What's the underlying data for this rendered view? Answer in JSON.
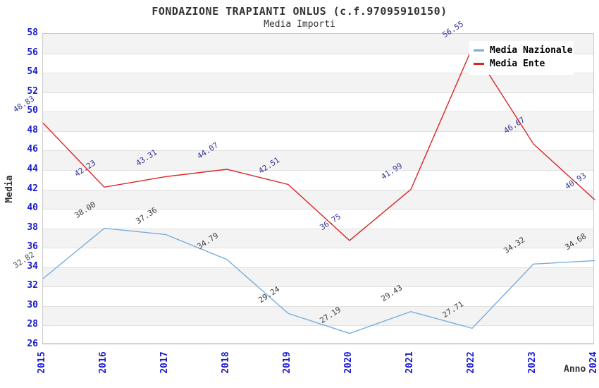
{
  "header": {
    "title": "FONDAZIONE TRAPIANTI ONLUS (c.f.97095910150)",
    "subtitle": "Media Importi"
  },
  "axes": {
    "x_title": "Anno",
    "y_title": "Media"
  },
  "legend": {
    "items": [
      {
        "label": "Media Nazionale"
      },
      {
        "label": "Media Ente"
      }
    ]
  },
  "colors": {
    "nazionale_line": "#7aaddc",
    "ente_line": "#dd2424",
    "nazionale_label": "#3d3d3d",
    "ente_label": "#333399",
    "axis_tick": "#1a1acc",
    "band_fill": "#f3f3f3",
    "gridline": "#e0e0e0",
    "text": "#333333"
  },
  "chart_data": {
    "type": "line",
    "title": "FONDAZIONE TRAPIANTI ONLUS (c.f.97095910150)",
    "subtitle": "Media Importi",
    "xlabel": "Anno",
    "ylabel": "Media",
    "x": [
      "2015",
      "2016",
      "2017",
      "2018",
      "2019",
      "2020",
      "2021",
      "2022",
      "2023",
      "2024"
    ],
    "series": [
      {
        "name": "Media Nazionale",
        "color": "#7aaddc",
        "label_color": "#3d3d3d",
        "values": [
          32.82,
          38.0,
          37.36,
          34.79,
          29.24,
          27.19,
          29.43,
          27.71,
          34.32,
          34.68
        ]
      },
      {
        "name": "Media Ente",
        "color": "#dd2424",
        "label_color": "#333399",
        "values": [
          48.83,
          42.23,
          43.31,
          44.07,
          42.51,
          36.75,
          41.99,
          56.55,
          46.67,
          40.93
        ]
      }
    ],
    "ylim": [
      26,
      58
    ],
    "ytick_step": 2,
    "grid": "horizontal-bands",
    "legend_position": "top-right",
    "value_labels": "two-decimals, rotated"
  }
}
